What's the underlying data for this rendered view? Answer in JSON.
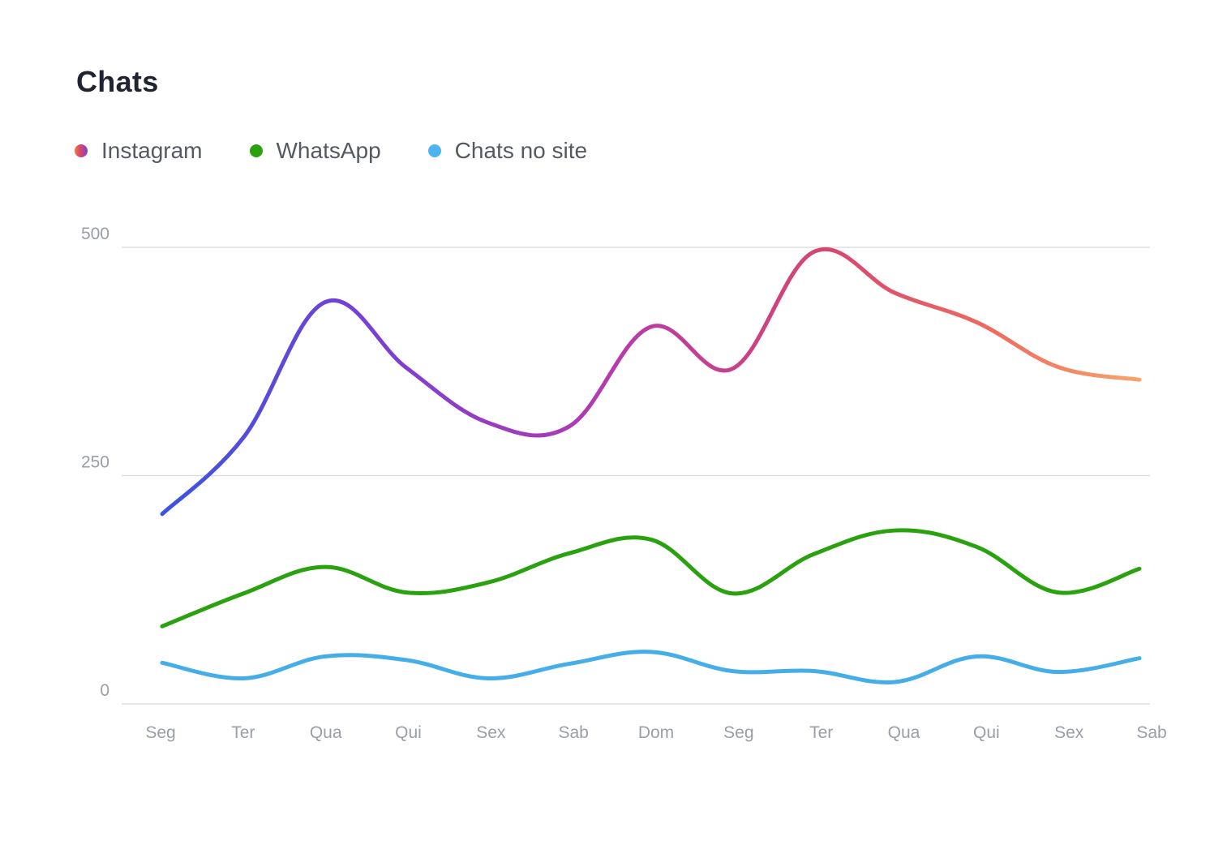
{
  "title": "Chats",
  "legend": [
    {
      "label": "Instagram",
      "color": "gradient-instagram"
    },
    {
      "label": "WhatsApp",
      "color": "#2aa10f"
    },
    {
      "label": "Chats no site",
      "color": "#4fb3ef"
    }
  ],
  "colors": {
    "instagram_gradient": [
      "#3a55e0",
      "#7b3fd3",
      "#b43ab0",
      "#d8456f",
      "#ef6b5e",
      "#f6a56f"
    ],
    "whatsapp": "#2aa10f",
    "site": "#45aee8",
    "grid": "#dcdde0"
  },
  "chart_data": {
    "type": "line",
    "title": "Chats",
    "categories": [
      "Seg",
      "Ter",
      "Qua",
      "Qui",
      "Sex",
      "Sab",
      "Dom",
      "Seg",
      "Ter",
      "Qua",
      "Qui",
      "Sex",
      "Sab"
    ],
    "yticks": [
      0,
      250,
      500
    ],
    "ylim": [
      0,
      500
    ],
    "grid": "horizontal",
    "legend_position": "top-left",
    "series": [
      {
        "name": "Instagram",
        "values": [
          208,
          292,
          440,
          368,
          308,
          304,
          413,
          367,
          495,
          450,
          418,
          369,
          355
        ]
      },
      {
        "name": "WhatsApp",
        "values": [
          85,
          121,
          150,
          122,
          133,
          165,
          180,
          121,
          164,
          190,
          172,
          122,
          148
        ]
      },
      {
        "name": "Chats no site",
        "values": [
          45,
          28,
          52,
          48,
          28,
          44,
          57,
          36,
          36,
          24,
          52,
          35,
          50
        ]
      }
    ]
  }
}
